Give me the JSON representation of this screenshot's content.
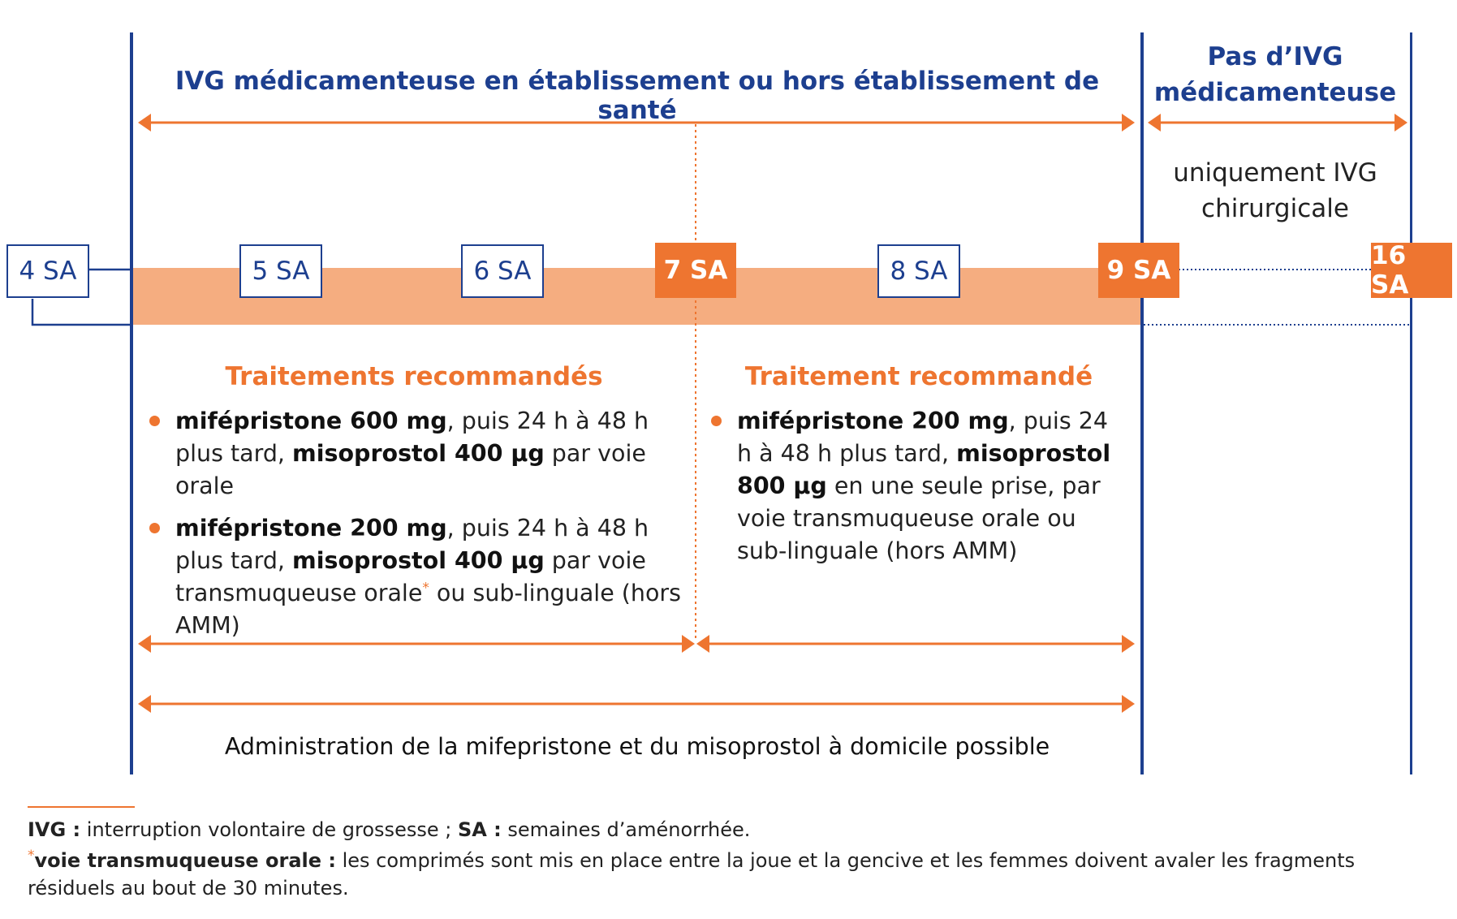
{
  "header": {
    "medical_title": "IVG médicamenteuse en établissement ou hors établissement de santé",
    "no_medical_title_line1": "Pas d’IVG",
    "no_medical_title_line2": "médicamenteuse",
    "surgical_line1": "uniquement IVG",
    "surgical_line2": "chirurgicale"
  },
  "timeline": {
    "weeks": [
      "4 SA",
      "5 SA",
      "6 SA",
      "7 SA",
      "8 SA",
      "9 SA",
      "16 SA"
    ]
  },
  "left_panel": {
    "title": "Traitements recommandés",
    "item1": {
      "b1": "mifépristone 600 mg",
      "t1": ", puis 24 h à 48 h plus tard, ",
      "b2": "misoprostol 400 µg",
      "t2": " par voie orale"
    },
    "item2": {
      "b1": "mifépristone 200 mg",
      "t1": ", puis 24 h à 48 h plus tard, ",
      "b2": "misoprostol 400 µg",
      "t2": " par voie transmuqueuse orale",
      "star": "*",
      "t3": " ou sub-linguale (hors AMM)"
    }
  },
  "right_panel": {
    "title": "Traitement recommandé",
    "item1": {
      "b1": "mifépristone 200 mg",
      "t1": ", puis 24 h à 48 h plus tard, ",
      "b2": "misoprostol 800 µg",
      "t2": " en une seule prise, par voie transmuqueuse orale ou sub-linguale (hors AMM)"
    }
  },
  "home_admin": "Administration de la mifepristone et du misoprostol à domicile possible",
  "footnotes": {
    "line1_b1": "IVG :",
    "line1_t1": " interruption volontaire de grossesse ; ",
    "line1_b2": "SA :",
    "line1_t2": " semaines d’aménorrhée.",
    "line2_star": "*",
    "line2_b": "voie transmuqueuse orale :",
    "line2_t": " les comprimés sont mis en place entre la joue et la gencive et les femmes doivent avaler les fragments résiduels au bout de 30 minutes."
  },
  "colors": {
    "blue": "#1d3f8f",
    "orange": "#ee7530",
    "band": "#f5ad80"
  }
}
